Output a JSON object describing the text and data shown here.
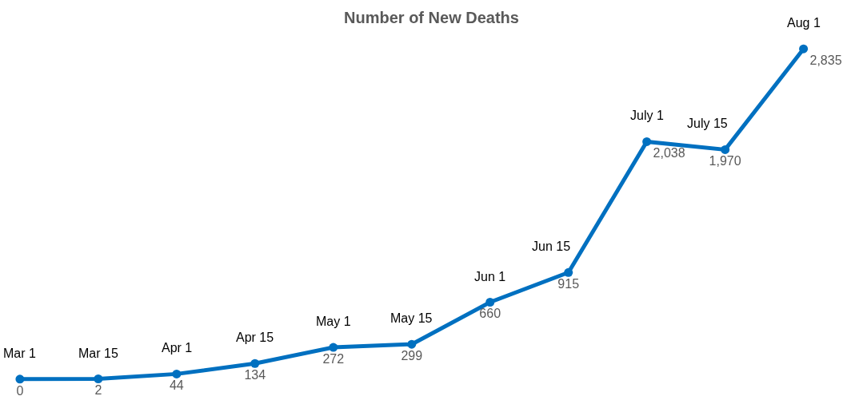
{
  "chart_data": {
    "type": "line",
    "title": "Number of New Deaths",
    "categories": [
      "Mar 1",
      "Mar 15",
      "Apr 1",
      "Apr 15",
      "May 1",
      "May 15",
      "Jun 1",
      "Jun 15",
      "July 1",
      "July 15",
      "Aug 1"
    ],
    "values": [
      0,
      2,
      44,
      134,
      272,
      299,
      660,
      915,
      2038,
      1970,
      2835
    ],
    "value_labels": [
      "0",
      "2",
      "44",
      "134",
      "272",
      "299",
      "660",
      "915",
      "2,038",
      "1,970",
      "2,835"
    ],
    "color": "#0070c0",
    "marker": "circle",
    "line_style": "solid"
  }
}
